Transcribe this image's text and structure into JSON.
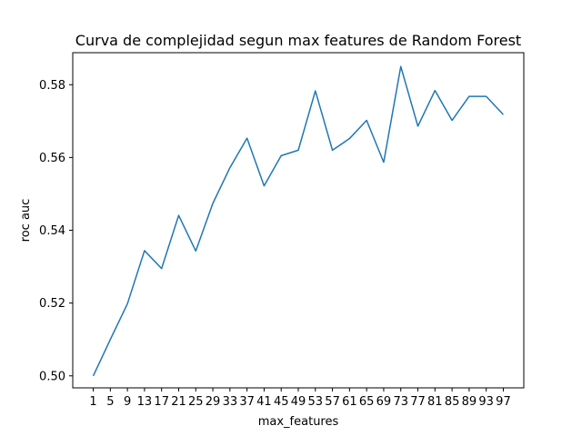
{
  "chart_data": {
    "type": "line",
    "title": "Curva de complejidad segun max features de Random Forest",
    "xlabel": "max_features",
    "ylabel": "roc auc",
    "x": [
      1,
      5,
      9,
      13,
      17,
      21,
      25,
      29,
      33,
      37,
      41,
      45,
      49,
      53,
      57,
      61,
      65,
      69,
      73,
      77,
      81,
      85,
      89,
      93,
      97
    ],
    "x_ticks": [
      "1",
      "5",
      "9",
      "13",
      "17",
      "21",
      "25",
      "29",
      "33",
      "37",
      "41",
      "45",
      "49",
      "53",
      "57",
      "61",
      "65",
      "69",
      "73",
      "77",
      "81",
      "85",
      "89",
      "93",
      "97"
    ],
    "y_ticks": [
      "0.50",
      "0.52",
      "0.54",
      "0.56",
      "0.58"
    ],
    "ylim": [
      0.4967,
      0.5888
    ],
    "series": [
      {
        "values": [
          0.5,
          0.51,
          0.5198,
          0.5344,
          0.5295,
          0.5441,
          0.5343,
          0.5474,
          0.5572,
          0.5653,
          0.5522,
          0.5605,
          0.562,
          0.5783,
          0.562,
          0.5652,
          0.5702,
          0.5587,
          0.585,
          0.5686,
          0.5784,
          0.5702,
          0.5768,
          0.5768,
          0.5718
        ],
        "color": "#1f77b4"
      }
    ],
    "grid": false,
    "legend": "none"
  }
}
